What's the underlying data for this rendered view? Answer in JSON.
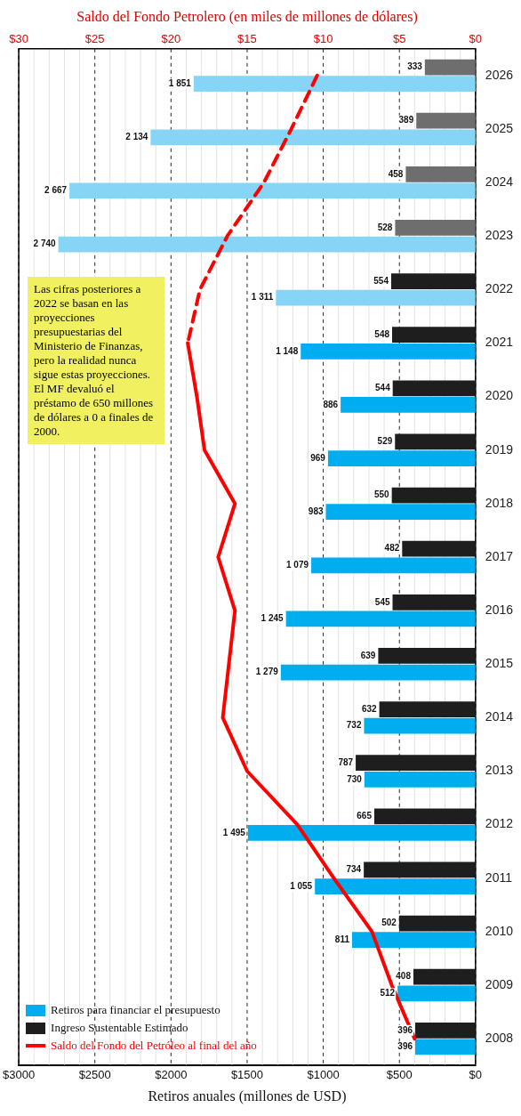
{
  "chart_data": {
    "type": "bar",
    "orientation": "horizontal",
    "xlabel": "Retiros anuales (millones de USD)",
    "x2label": "Saldo del Fondo Petrolero (en miles de millones de dólares)",
    "categories": [
      "2026",
      "2025",
      "2024",
      "2023",
      "2022",
      "2021",
      "2020",
      "2019",
      "2018",
      "2017",
      "2016",
      "2015",
      "2014",
      "2013",
      "2012",
      "2011",
      "2010",
      "2009",
      "2008"
    ],
    "series": [
      {
        "name": "Retiros para financiar el presupuesto",
        "color": "#00aeef",
        "colors": [
          "#86d5f6",
          "#86d5f6",
          "#86d5f6",
          "#86d5f6",
          "#86d5f6",
          "#00aeef",
          "#00aeef",
          "#00aeef",
          "#00aeef",
          "#00aeef",
          "#00aeef",
          "#00aeef",
          "#00aeef",
          "#00aeef",
          "#00aeef",
          "#00aeef",
          "#00aeef",
          "#00aeef",
          "#00aeef"
        ],
        "values": [
          1851,
          2134,
          2667,
          2740,
          1311,
          1148,
          886,
          969,
          983,
          1079,
          1245,
          1279,
          732,
          730,
          1495,
          1055,
          811,
          512,
          396
        ],
        "value_labels": [
          "1 851",
          "2 134",
          "2 667",
          "2 740",
          "1 311",
          "1 148",
          "886",
          "969",
          "983",
          "1 079",
          "1 245",
          "1 279",
          "732",
          "730",
          "1 495",
          "1 055",
          "811",
          "512",
          "396"
        ]
      },
      {
        "name": "Ingreso Sustentable Estimado",
        "color": "#1e1e1e",
        "colors": [
          "#6e6e6e",
          "#6e6e6e",
          "#6e6e6e",
          "#6e6e6e",
          "#1e1e1e",
          "#1e1e1e",
          "#1e1e1e",
          "#1e1e1e",
          "#1e1e1e",
          "#1e1e1e",
          "#1e1e1e",
          "#1e1e1e",
          "#1e1e1e",
          "#1e1e1e",
          "#1e1e1e",
          "#1e1e1e",
          "#1e1e1e",
          "#1e1e1e",
          "#1e1e1e"
        ],
        "values": [
          333,
          389,
          458,
          528,
          554,
          548,
          544,
          529,
          550,
          482,
          545,
          639,
          632,
          787,
          665,
          734,
          502,
          408,
          396
        ],
        "value_labels": [
          "333",
          "389",
          "458",
          "528",
          "554",
          "548",
          "544",
          "529",
          "550",
          "482",
          "545",
          "639",
          "632",
          "787",
          "665",
          "734",
          "502",
          "408",
          "396"
        ]
      },
      {
        "name": "Saldo del Fondo del Petróleo al final del año",
        "type": "line",
        "axis": "x2",
        "color": "#ff0000",
        "line_style": "solid",
        "values": [
          null,
          null,
          null,
          null,
          null,
          18.9,
          18.3,
          17.8,
          15.8,
          16.9,
          15.8,
          16.2,
          16.6,
          15.0,
          11.7,
          9.3,
          6.8,
          5.5,
          4.0
        ]
      },
      {
        "type": "line",
        "axis": "x2",
        "color": "#ff0000",
        "line_style": "dashed",
        "values": [
          10.4,
          12.1,
          13.9,
          16.3,
          18.1,
          18.9,
          null,
          null,
          null,
          null,
          null,
          null,
          null,
          null,
          null,
          null,
          null,
          null,
          null
        ]
      }
    ],
    "xlim": [
      3000,
      0
    ],
    "xticks": [
      {
        "value": 3000,
        "label": "$3000"
      },
      {
        "value": 2900,
        "label": null
      },
      {
        "value": 2800,
        "label": null
      },
      {
        "value": 2700,
        "label": null
      },
      {
        "value": 2600,
        "label": null
      },
      {
        "value": 2500,
        "label": "$2500"
      },
      {
        "value": 2400,
        "label": null
      },
      {
        "value": 2300,
        "label": null
      },
      {
        "value": 2200,
        "label": null
      },
      {
        "value": 2100,
        "label": null
      },
      {
        "value": 2000,
        "label": "$2000"
      },
      {
        "value": 1900,
        "label": null
      },
      {
        "value": 1800,
        "label": null
      },
      {
        "value": 1700,
        "label": null
      },
      {
        "value": 1600,
        "label": null
      },
      {
        "value": 1500,
        "label": "$1500"
      },
      {
        "value": 1400,
        "label": null
      },
      {
        "value": 1300,
        "label": null
      },
      {
        "value": 1200,
        "label": null
      },
      {
        "value": 1100,
        "label": null
      },
      {
        "value": 1000,
        "label": "$1000"
      },
      {
        "value": 900,
        "label": null
      },
      {
        "value": 800,
        "label": null
      },
      {
        "value": 700,
        "label": null
      },
      {
        "value": 600,
        "label": null
      },
      {
        "value": 500,
        "label": "$500"
      },
      {
        "value": 400,
        "label": null
      },
      {
        "value": 300,
        "label": null
      },
      {
        "value": 200,
        "label": null
      },
      {
        "value": 100,
        "label": null
      },
      {
        "value": 0,
        "label": "$0"
      }
    ],
    "x2lim": [
      30,
      0
    ],
    "x2ticks": [
      {
        "value": 30,
        "label": "$30"
      },
      {
        "value": 25,
        "label": "$25"
      },
      {
        "value": 20,
        "label": "$20"
      },
      {
        "value": 15,
        "label": "$15"
      },
      {
        "value": 10,
        "label": "$10"
      },
      {
        "value": 5,
        "label": "$5"
      },
      {
        "value": 0,
        "label": "$0"
      }
    ],
    "grid": "x",
    "legend": "bottom left",
    "annotations": [
      "Las cifras posteriores a 2022 se basan en las proyecciones presupuestarias del Ministerio de Finanzas, pero la realidad nunca sigue estas proyecciones.\nEl MF devaluó el préstamo de 650 millones de dólares a 0 a finales de 2000."
    ]
  }
}
